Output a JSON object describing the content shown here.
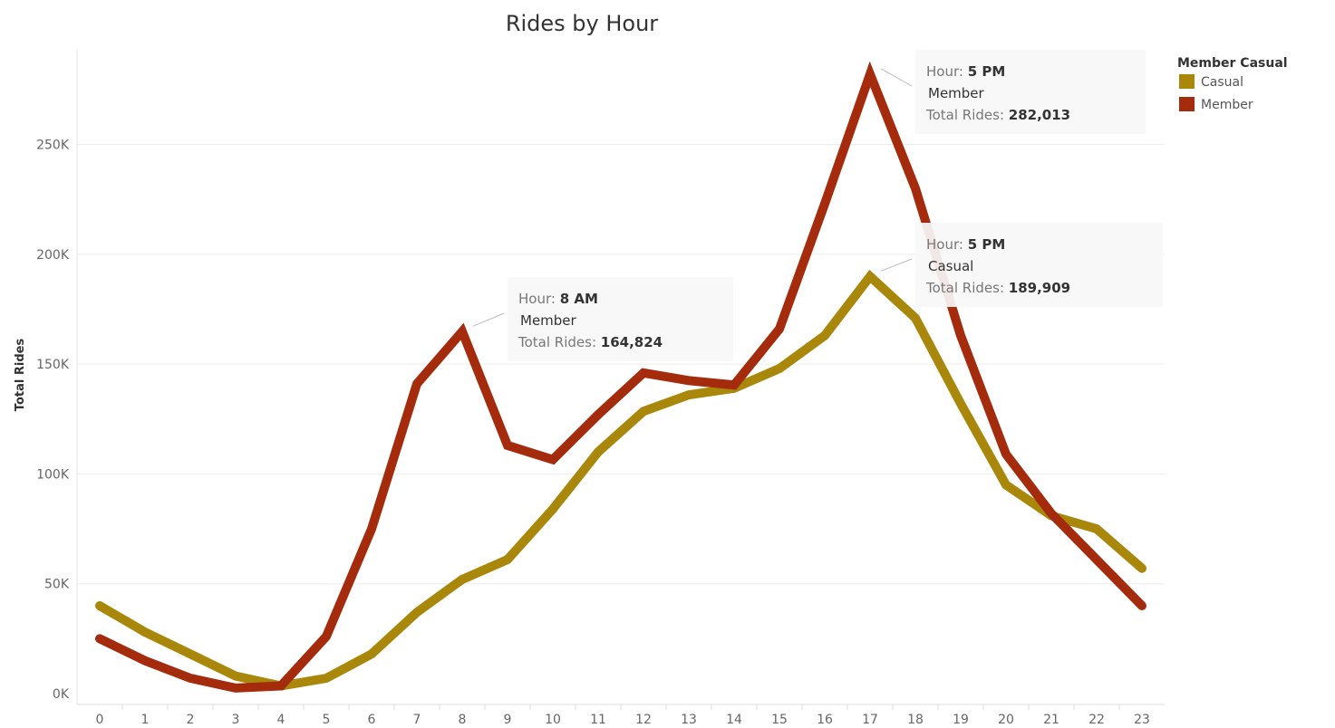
{
  "chart_data": {
    "type": "line",
    "title": "Rides by Hour",
    "xlabel": "",
    "ylabel": "Total Rides",
    "x": [
      0,
      1,
      2,
      3,
      4,
      5,
      6,
      7,
      8,
      9,
      10,
      11,
      12,
      13,
      14,
      15,
      16,
      17,
      18,
      19,
      20,
      21,
      22,
      23
    ],
    "y_ticks": [
      "0K",
      "50K",
      "100K",
      "150K",
      "200K",
      "250K"
    ],
    "y_tick_values": [
      0,
      50000,
      100000,
      150000,
      200000,
      250000
    ],
    "ylim": [
      0,
      300000
    ],
    "grid": true,
    "legend_title": "Member Casual",
    "legend_position": "top-right",
    "series": [
      {
        "name": "Casual",
        "color": "#A8870A",
        "values": [
          40000,
          28000,
          18000,
          8000,
          3500,
          7000,
          18000,
          37000,
          52000,
          61000,
          84000,
          110000,
          128500,
          136000,
          139000,
          148000,
          163000,
          189909,
          171000,
          132000,
          95000,
          81000,
          75000,
          57000
        ]
      },
      {
        "name": "Member",
        "color": "#A52B0D",
        "values": [
          25000,
          15000,
          7000,
          2500,
          3500,
          26000,
          75000,
          141000,
          164824,
          113000,
          106500,
          127000,
          146000,
          142500,
          140500,
          166000,
          223000,
          282013,
          230000,
          163000,
          109000,
          82000,
          61000,
          40000
        ]
      }
    ],
    "annotations": [
      {
        "series": "Member",
        "hour_label": "Hour:",
        "hour_value": "8 AM",
        "series_label": "Member",
        "rides_label": "Total Rides:",
        "rides_value": "164,824",
        "x": 8,
        "y": 164824
      },
      {
        "series": "Member",
        "hour_label": "Hour:",
        "hour_value": "5 PM",
        "series_label": "Member",
        "rides_label": "Total Rides:",
        "rides_value": "282,013",
        "x": 17,
        "y": 282013
      },
      {
        "series": "Casual",
        "hour_label": "Hour:",
        "hour_value": "5 PM",
        "series_label": "Casual",
        "rides_label": "Total Rides:",
        "rides_value": "189,909",
        "x": 17,
        "y": 189909
      }
    ]
  }
}
